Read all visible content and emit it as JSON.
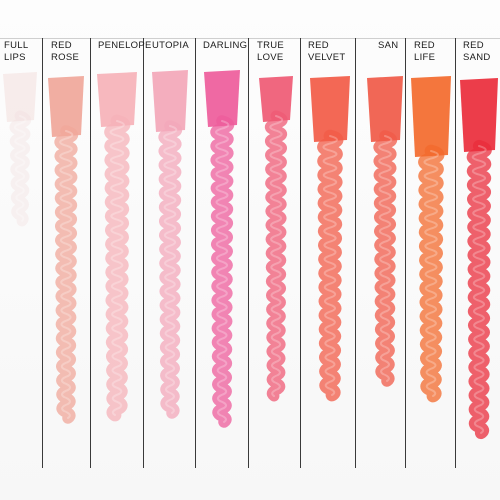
{
  "swatches": [
    {
      "line1": "FULL",
      "line2": "LIPS",
      "color": "#f2dedd"
    },
    {
      "line1": "RED",
      "line2": "ROSE",
      "color": "#f0a79a"
    },
    {
      "line1": "PENELOPE",
      "line2": "",
      "color": "#f6b2b8"
    },
    {
      "line1": "UTOPIA",
      "line2": "",
      "color": "#f3a7b9"
    },
    {
      "line1": "DARLING",
      "line2": "",
      "color": "#ee5c9b"
    },
    {
      "line1": "TRUE",
      "line2": "LOVE",
      "color": "#ef5a74"
    },
    {
      "line1": "RED",
      "line2": "VELVET",
      "color": "#f25b47"
    },
    {
      "line1": "SAN",
      "line2": "",
      "color": "#f05a48"
    },
    {
      "line1": "RED",
      "line2": "LIFE",
      "color": "#f36a2c"
    },
    {
      "line1": "RED",
      "line2": "SAND",
      "color": "#ea2c3b"
    }
  ]
}
